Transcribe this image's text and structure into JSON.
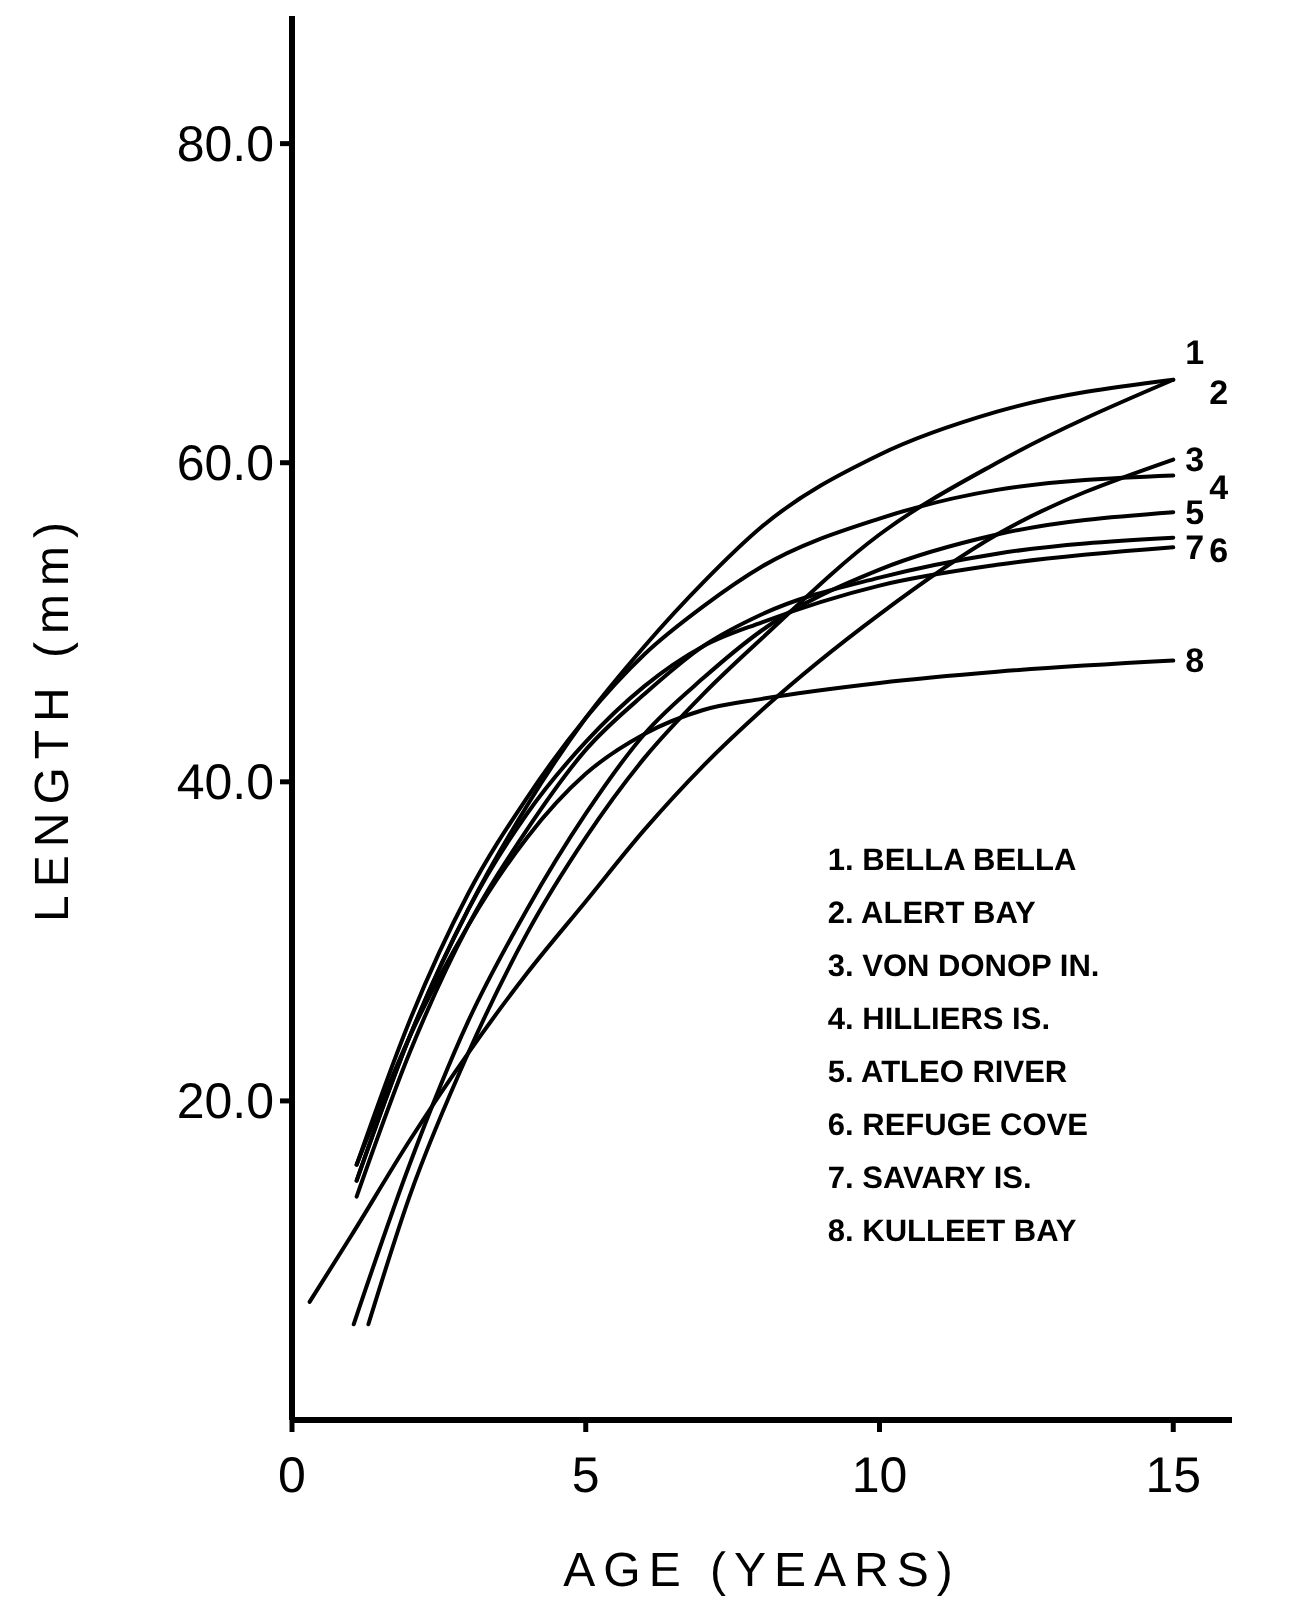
{
  "chart_data": {
    "type": "line",
    "xlabel": "AGE (YEARS)",
    "ylabel": "LENGTH (mm)",
    "xlim": [
      0,
      16
    ],
    "ylim": [
      0,
      88
    ],
    "xticks": [
      0,
      5,
      10,
      15
    ],
    "yticks": [
      {
        "value": 20,
        "label": "20.0"
      },
      {
        "value": 40,
        "label": "40.0"
      },
      {
        "value": 60,
        "label": "60.0"
      },
      {
        "value": 80,
        "label": "80.0"
      }
    ],
    "grid": false,
    "line_style": "solid",
    "series": [
      {
        "name": "1",
        "color": "#000000",
        "x": [
          1.1,
          2,
          3,
          4,
          5,
          6,
          7,
          8,
          10,
          12,
          15
        ],
        "values": [
          15,
          24,
          32,
          38.5,
          44,
          48.5,
          52.5,
          56,
          60.5,
          63.2,
          65.2
        ]
      },
      {
        "name": "2",
        "color": "#000000",
        "x": [
          1.3,
          2,
          3,
          4,
          5,
          6,
          7,
          8,
          10,
          12,
          15
        ],
        "values": [
          6,
          14,
          23,
          30.5,
          36.5,
          41.5,
          45.5,
          49,
          55.5,
          60,
          65.2
        ]
      },
      {
        "name": "3",
        "color": "#000000",
        "x": [
          0.3,
          1,
          2,
          3,
          4,
          5,
          6,
          7,
          8,
          10,
          12,
          15
        ],
        "values": [
          7.4,
          11.5,
          17.5,
          23,
          28,
          32.5,
          37,
          41,
          44.5,
          50.5,
          55.5,
          60.2
        ]
      },
      {
        "name": "4",
        "color": "#000000",
        "x": [
          1.1,
          2,
          3,
          4,
          5,
          6,
          7,
          8,
          10,
          12,
          15
        ],
        "values": [
          16,
          25,
          33,
          39,
          44,
          48,
          51,
          53.5,
          56.5,
          58.3,
          59.2
        ]
      },
      {
        "name": "5",
        "color": "#000000",
        "x": [
          1.05,
          2,
          3,
          4,
          5,
          6,
          7,
          8,
          10,
          12,
          15
        ],
        "values": [
          6,
          16,
          25,
          32,
          38,
          43,
          46.5,
          49.5,
          53.3,
          55.5,
          56.9
        ]
      },
      {
        "name": "6",
        "color": "#000000",
        "x": [
          1.1,
          2,
          3,
          4,
          5,
          6,
          7,
          8,
          10,
          12,
          15
        ],
        "values": [
          14,
          23,
          31,
          37,
          42,
          45.5,
          48.5,
          50.5,
          52.8,
          54.3,
          55.3
        ]
      },
      {
        "name": "7",
        "color": "#000000",
        "x": [
          1.1,
          2,
          3,
          4,
          5,
          6,
          7,
          8,
          10,
          12,
          15
        ],
        "values": [
          15,
          24,
          32,
          38,
          42.5,
          46,
          48.5,
          50,
          52.3,
          53.6,
          54.7
        ]
      },
      {
        "name": "8",
        "color": "#000000",
        "x": [
          1.1,
          2,
          3,
          4,
          5,
          6,
          7,
          8,
          10,
          12,
          15
        ],
        "values": [
          16,
          24,
          31,
          36.5,
          40.5,
          43,
          44.5,
          45.2,
          46.2,
          46.9,
          47.6
        ]
      }
    ],
    "annotations": [
      "1. BELLA BELLA",
      "2. ALERT BAY",
      "3. VON DONOP IN.",
      "4. HILLIERS IS.",
      "5. ATLEO RIVER",
      "6. REFUGE COVE",
      "7. SAVARY IS.",
      "8. KULLEET BAY"
    ]
  }
}
